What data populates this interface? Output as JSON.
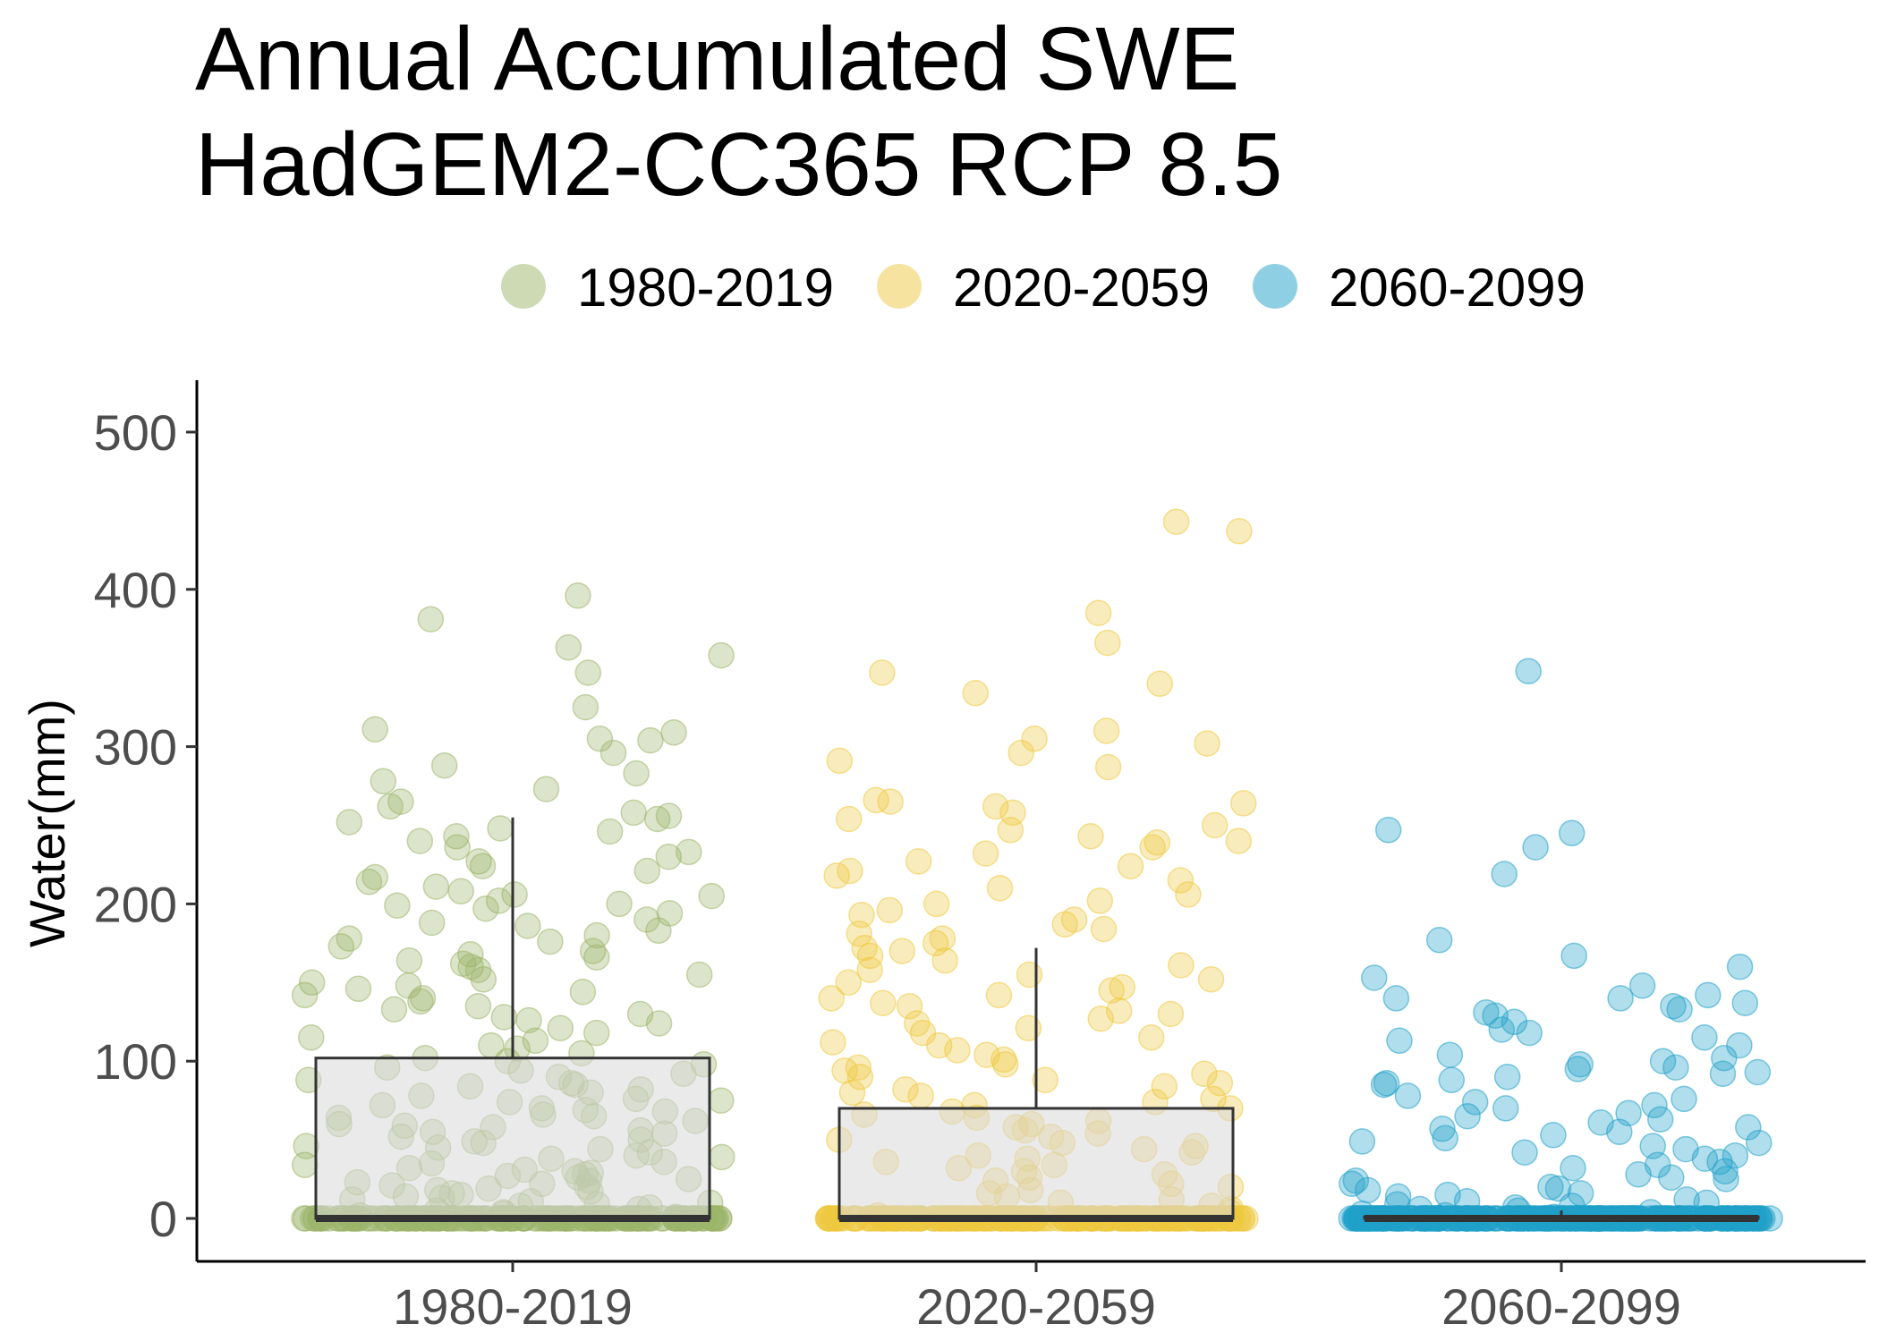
{
  "chart_data": {
    "type": "box_jitter",
    "title_lines": [
      "Annual Accumulated SWE",
      "HadGEM2-CC365 RCP 8.5"
    ],
    "xlabel": "",
    "ylabel": "Water(mm)",
    "ylim": [
      -25,
      530
    ],
    "yticks": [
      0,
      100,
      200,
      300,
      400,
      500
    ],
    "ytick_labels": [
      "0",
      "100",
      "200",
      "300",
      "400",
      "500"
    ],
    "categories": [
      "1980-2019",
      "2020-2059",
      "2060-2099"
    ],
    "legend": {
      "position": "top",
      "entries": [
        "1980-2019",
        "2020-2059",
        "2060-2099"
      ]
    },
    "colors": {
      "1980-2019": "#9CB56A",
      "2020-2059": "#EEC840",
      "2060-2099": "#1FA0C8",
      "box_fill": "#D9D9D9",
      "box_line": "#333333"
    },
    "boxes": [
      {
        "name": "1980-2019",
        "q1": 0,
        "median": 0,
        "q3": 102,
        "whisker_low": 0,
        "whisker_high": 255
      },
      {
        "name": "2020-2059",
        "q1": 0,
        "median": 0,
        "q3": 70,
        "whisker_low": 0,
        "whisker_high": 172
      },
      {
        "name": "2060-2099",
        "q1": 0,
        "median": 0,
        "q3": 1,
        "whisker_low": 0,
        "whisker_high": 5
      }
    ],
    "series": [
      {
        "name": "1980-2019",
        "values": [
          396,
          381,
          363,
          358,
          347,
          325,
          311,
          309,
          305,
          304,
          296,
          288,
          283,
          278,
          273,
          265,
          262,
          258,
          256,
          254,
          252,
          248,
          246,
          243,
          240,
          236,
          233,
          230,
          227,
          224,
          221,
          217,
          214,
          211,
          208,
          206,
          205,
          202,
          200,
          199,
          197,
          194,
          190,
          188,
          186,
          183,
          180,
          178,
          176,
          173,
          170,
          168,
          166,
          164,
          162,
          160,
          158,
          155,
          152,
          150,
          148,
          146,
          144,
          142,
          140,
          138,
          135,
          133,
          130,
          128,
          126,
          124,
          121,
          118,
          115,
          113,
          110,
          108,
          105,
          102,
          100,
          98,
          96,
          94,
          92,
          90,
          88,
          86,
          85,
          84,
          82,
          80,
          78,
          76,
          75,
          74,
          72,
          70,
          69,
          68,
          66,
          65,
          64,
          62,
          60,
          59,
          58,
          56,
          55,
          54,
          52,
          50,
          49,
          48,
          46,
          45,
          44,
          42,
          40,
          39,
          38,
          36,
          35,
          34,
          32,
          31,
          30,
          29,
          28,
          27,
          26,
          25,
          24,
          23,
          22,
          21,
          20,
          19,
          18,
          17,
          16,
          15,
          14,
          13,
          12,
          11,
          10,
          9,
          8,
          7,
          6,
          5,
          4,
          3,
          2,
          1,
          0,
          0,
          0,
          0,
          0,
          0,
          0,
          0,
          0,
          0,
          0,
          0,
          0,
          0,
          0,
          0,
          0,
          0,
          0,
          0,
          0,
          0,
          0,
          0,
          0,
          0,
          0,
          0,
          0,
          0,
          0,
          0,
          0,
          0,
          0,
          0,
          0,
          0,
          0,
          0,
          0,
          0,
          0,
          0,
          0,
          0,
          0,
          0,
          0,
          0,
          0,
          0,
          0,
          0,
          0,
          0,
          0,
          0,
          0,
          0,
          0,
          0,
          0,
          0,
          0,
          0,
          0,
          0,
          0,
          0,
          0,
          0,
          0,
          0,
          0,
          0,
          0,
          0,
          0,
          0,
          0,
          0,
          0,
          0,
          0,
          0,
          0,
          0,
          0,
          0,
          0,
          0,
          0,
          0,
          0,
          0,
          0,
          0,
          0,
          0,
          0,
          0,
          0,
          0,
          0,
          0,
          0,
          0,
          0,
          0,
          0,
          0,
          0,
          0,
          0,
          0,
          0,
          0,
          0,
          0,
          0,
          0,
          0,
          0,
          0,
          0,
          0,
          0,
          0,
          0,
          0,
          0,
          0,
          0,
          0,
          0,
          0,
          0,
          0,
          0,
          0,
          0,
          0,
          0,
          0,
          0,
          0,
          0,
          0,
          0,
          0,
          0,
          0,
          0,
          0,
          0,
          0,
          0,
          0,
          0,
          0,
          0,
          0,
          0,
          0,
          0,
          0
        ]
      },
      {
        "name": "2020-2059",
        "values": [
          443,
          437,
          385,
          366,
          347,
          340,
          334,
          310,
          305,
          302,
          296,
          291,
          287,
          266,
          265,
          264,
          262,
          258,
          254,
          250,
          247,
          243,
          240,
          239,
          236,
          232,
          227,
          224,
          221,
          218,
          215,
          210,
          206,
          202,
          200,
          196,
          193,
          190,
          187,
          184,
          181,
          178,
          175,
          172,
          170,
          167,
          164,
          161,
          158,
          155,
          152,
          150,
          147,
          145,
          142,
          140,
          137,
          135,
          132,
          130,
          127,
          124,
          121,
          118,
          115,
          112,
          110,
          107,
          104,
          101,
          98,
          96,
          94,
          92,
          90,
          88,
          86,
          84,
          82,
          80,
          78,
          76,
          74,
          72,
          70,
          68,
          66,
          64,
          62,
          60,
          58,
          56,
          54,
          52,
          50,
          48,
          46,
          44,
          42,
          40,
          38,
          36,
          34,
          32,
          30,
          28,
          26,
          24,
          22,
          20,
          18,
          16,
          14,
          12,
          10,
          8,
          6,
          4,
          2,
          0,
          0,
          0,
          0,
          0,
          0,
          0,
          0,
          0,
          0,
          0,
          0,
          0,
          0,
          0,
          0,
          0,
          0,
          0,
          0,
          0,
          0,
          0,
          0,
          0,
          0,
          0,
          0,
          0,
          0,
          0,
          0,
          0,
          0,
          0,
          0,
          0,
          0,
          0,
          0,
          0,
          0,
          0,
          0,
          0,
          0,
          0,
          0,
          0,
          0,
          0,
          0,
          0,
          0,
          0,
          0,
          0,
          0,
          0,
          0,
          0,
          0,
          0,
          0,
          0,
          0,
          0,
          0,
          0,
          0,
          0,
          0,
          0,
          0,
          0,
          0,
          0,
          0,
          0,
          0,
          0,
          0,
          0,
          0,
          0,
          0,
          0,
          0,
          0,
          0,
          0,
          0,
          0,
          0,
          0,
          0,
          0,
          0,
          0,
          0,
          0,
          0,
          0,
          0,
          0,
          0,
          0,
          0,
          0,
          0,
          0,
          0,
          0,
          0,
          0,
          0,
          0,
          0,
          0,
          0,
          0,
          0,
          0,
          0,
          0,
          0,
          0,
          0,
          0,
          0,
          0,
          0,
          0,
          0,
          0,
          0,
          0,
          0,
          0,
          0,
          0,
          0,
          0,
          0,
          0,
          0,
          0,
          0,
          0,
          0,
          0,
          0,
          0,
          0,
          0,
          0,
          0,
          0,
          0,
          0,
          0,
          0,
          0,
          0,
          0,
          0,
          0,
          0,
          0,
          0,
          0,
          0,
          0,
          0,
          0,
          0,
          0,
          0,
          0,
          0,
          0,
          0,
          0,
          0,
          0,
          0,
          0,
          0,
          0,
          0,
          0,
          0,
          0
        ]
      },
      {
        "name": "2060-2099",
        "values": [
          348,
          247,
          245,
          236,
          219,
          177,
          167,
          160,
          153,
          148,
          142,
          140,
          140,
          137,
          135,
          133,
          131,
          129,
          125,
          120,
          118,
          115,
          113,
          110,
          104,
          102,
          100,
          98,
          96,
          95,
          93,
          92,
          90,
          88,
          86,
          85,
          78,
          76,
          74,
          72,
          70,
          67,
          65,
          63,
          61,
          58,
          57,
          55,
          53,
          51,
          49,
          48,
          46,
          44,
          42,
          40,
          38,
          36,
          34,
          32,
          30,
          28,
          26,
          25,
          24,
          22,
          20,
          19,
          18,
          16,
          15,
          14,
          12,
          11,
          10,
          9,
          8,
          7,
          6,
          5,
          4,
          3,
          2,
          1,
          0,
          0,
          0,
          0,
          0,
          0,
          0,
          0,
          0,
          0,
          0,
          0,
          0,
          0,
          0,
          0,
          0,
          0,
          0,
          0,
          0,
          0,
          0,
          0,
          0,
          0,
          0,
          0,
          0,
          0,
          0,
          0,
          0,
          0,
          0,
          0,
          0,
          0,
          0,
          0,
          0,
          0,
          0,
          0,
          0,
          0,
          0,
          0,
          0,
          0,
          0,
          0,
          0,
          0,
          0,
          0,
          0,
          0,
          0,
          0,
          0,
          0,
          0,
          0,
          0,
          0,
          0,
          0,
          0,
          0,
          0,
          0,
          0,
          0,
          0,
          0,
          0,
          0,
          0,
          0,
          0,
          0,
          0,
          0,
          0,
          0,
          0,
          0,
          0,
          0,
          0,
          0,
          0,
          0,
          0,
          0,
          0,
          0,
          0,
          0,
          0,
          0,
          0,
          0,
          0,
          0,
          0,
          0,
          0,
          0,
          0,
          0,
          0,
          0,
          0,
          0,
          0,
          0,
          0,
          0,
          0,
          0,
          0,
          0,
          0,
          0,
          0,
          0,
          0,
          0,
          0,
          0,
          0,
          0,
          0,
          0,
          0,
          0,
          0,
          0,
          0,
          0,
          0,
          0,
          0,
          0,
          0,
          0,
          0,
          0,
          0,
          0,
          0,
          0,
          0,
          0,
          0,
          0,
          0,
          0,
          0,
          0,
          0,
          0,
          0,
          0,
          0,
          0,
          0,
          0,
          0,
          0,
          0,
          0,
          0,
          0,
          0,
          0,
          0,
          0,
          0,
          0,
          0,
          0,
          0,
          0,
          0,
          0,
          0,
          0,
          0,
          0,
          0,
          0,
          0,
          0,
          0,
          0,
          0,
          0,
          0,
          0,
          0,
          0,
          0,
          0,
          0,
          0,
          0,
          0,
          0,
          0,
          0,
          0,
          0,
          0,
          0,
          0,
          0,
          0,
          0,
          0,
          0,
          0,
          0,
          0,
          0,
          0,
          0,
          0,
          0,
          0,
          0,
          0,
          0,
          0,
          0,
          0,
          0,
          0,
          0,
          0,
          0,
          0,
          0,
          0,
          0,
          0,
          0,
          0,
          0,
          0,
          0,
          0,
          0,
          0,
          0,
          0,
          0,
          0,
          0,
          0,
          0,
          0,
          0,
          0,
          0,
          0,
          0,
          0,
          0,
          0,
          0,
          0,
          0,
          0,
          0,
          0,
          0,
          0,
          0,
          0
        ]
      }
    ]
  }
}
